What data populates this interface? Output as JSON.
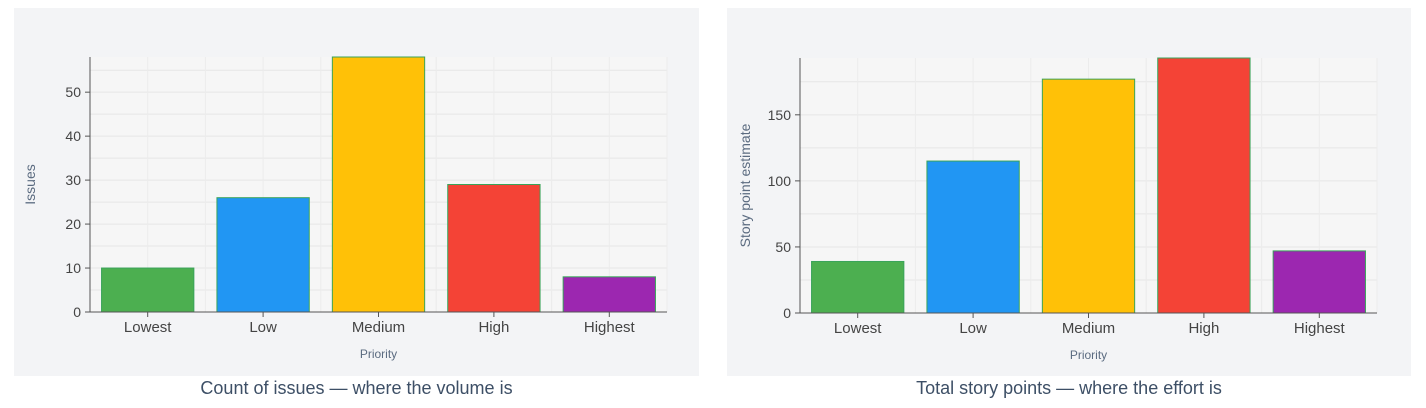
{
  "chart_data": [
    {
      "type": "bar",
      "categories": [
        "Lowest",
        "Low",
        "Medium",
        "High",
        "Highest"
      ],
      "values": [
        10,
        26,
        58,
        29,
        8
      ],
      "colors": [
        "#4caf50",
        "#2196f3",
        "#ffc107",
        "#f44336",
        "#9c27b0"
      ],
      "xlabel": "Priority",
      "ylabel": "Issues",
      "ylim": [
        0,
        58
      ],
      "yticks": [
        0,
        10,
        20,
        30,
        40,
        50
      ],
      "grid": true,
      "caption": "Count of issues  —  where the volume is"
    },
    {
      "type": "bar",
      "categories": [
        "Lowest",
        "Low",
        "Medium",
        "High",
        "Highest"
      ],
      "values": [
        39,
        115,
        177,
        193,
        47
      ],
      "colors": [
        "#4caf50",
        "#2196f3",
        "#ffc107",
        "#f44336",
        "#9c27b0"
      ],
      "xlabel": "Priority",
      "ylabel": "Story point estimate",
      "ylim": [
        0,
        193
      ],
      "yticks": [
        0,
        50,
        100,
        150
      ],
      "grid": true,
      "caption": "Total story points  —  where the effort is"
    }
  ]
}
